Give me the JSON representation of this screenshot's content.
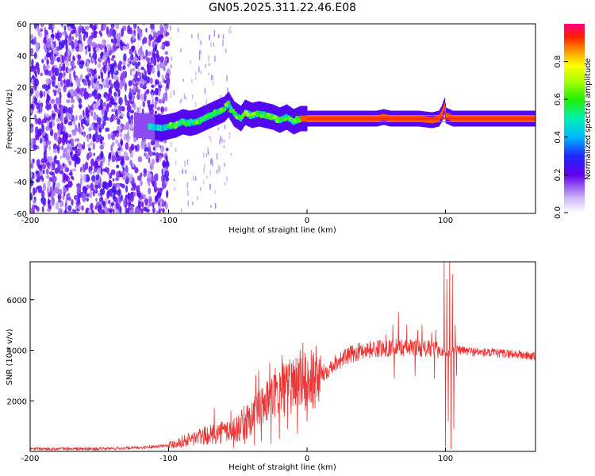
{
  "title": "GN05.2025.311.22.46.E08",
  "chart_data": [
    {
      "type": "heatmap",
      "xlabel": "Height of straight line (km)",
      "ylabel": "Frequency (Hz)",
      "xlim": [
        -200,
        165
      ],
      "ylim": [
        -60,
        60
      ],
      "xticks": [
        -200,
        -100,
        0,
        100
      ],
      "yticks": [
        -60,
        -40,
        -20,
        0,
        20,
        40,
        60
      ],
      "colorbar": {
        "label": "Normalized spectral amplitude",
        "range": [
          0,
          1
        ],
        "ticks": [
          0.0,
          0.2,
          0.4,
          0.6,
          0.8
        ]
      },
      "noise_region_x": [
        -200,
        -100
      ],
      "sparse_noise_x": [
        -100,
        -55
      ],
      "track": [
        [
          -115,
          -5
        ],
        [
          -105,
          -6
        ],
        [
          -100,
          -5
        ],
        [
          -95,
          -4
        ],
        [
          -90,
          -2
        ],
        [
          -85,
          -3
        ],
        [
          -80,
          -2
        ],
        [
          -75,
          0
        ],
        [
          -70,
          2
        ],
        [
          -65,
          4
        ],
        [
          -60,
          6
        ],
        [
          -57,
          9
        ],
        [
          -53,
          3
        ],
        [
          -48,
          0
        ],
        [
          -45,
          4
        ],
        [
          -40,
          2
        ],
        [
          -35,
          3
        ],
        [
          -30,
          2
        ],
        [
          -25,
          1
        ],
        [
          -20,
          -1
        ],
        [
          -15,
          1
        ],
        [
          -10,
          -2
        ],
        [
          -5,
          0
        ],
        [
          0,
          0
        ],
        [
          10,
          0
        ],
        [
          25,
          0
        ],
        [
          50,
          0
        ],
        [
          55,
          1
        ],
        [
          60,
          0
        ],
        [
          70,
          0
        ],
        [
          80,
          0
        ],
        [
          90,
          -1
        ],
        [
          95,
          0
        ],
        [
          97,
          3
        ],
        [
          99,
          8
        ],
        [
          100,
          2
        ],
        [
          105,
          0
        ],
        [
          130,
          0
        ],
        [
          165,
          0
        ]
      ]
    },
    {
      "type": "line",
      "xlabel": "Height of straight line (km)",
      "ylabel": "SNR (10 * v/v)",
      "xlim": [
        -200,
        165
      ],
      "ylim": [
        0,
        7500
      ],
      "xticks": [
        -200,
        -100,
        0,
        100
      ],
      "yticks": [
        2000,
        4000,
        6000
      ],
      "series_color": "#ee3333",
      "trend": [
        [
          -200,
          100
        ],
        [
          -150,
          100
        ],
        [
          -120,
          150
        ],
        [
          -100,
          250
        ],
        [
          -90,
          400
        ],
        [
          -80,
          550
        ],
        [
          -70,
          650
        ],
        [
          -60,
          800
        ],
        [
          -50,
          900
        ],
        [
          -40,
          1400
        ],
        [
          -30,
          1900
        ],
        [
          -20,
          2400
        ],
        [
          -10,
          2600
        ],
        [
          -5,
          2700
        ],
        [
          0,
          2700
        ],
        [
          10,
          3000
        ],
        [
          20,
          3500
        ],
        [
          30,
          3800
        ],
        [
          40,
          4000
        ],
        [
          60,
          4100
        ],
        [
          80,
          4100
        ],
        [
          95,
          4000
        ],
        [
          100,
          3900
        ],
        [
          103,
          3900
        ],
        [
          105,
          4100
        ],
        [
          110,
          4000
        ],
        [
          130,
          3900
        ],
        [
          150,
          3850
        ],
        [
          165,
          3750
        ]
      ],
      "spikes": [
        [
          -67,
          1700
        ],
        [
          -55,
          1600
        ],
        [
          -37,
          3000
        ],
        [
          -35,
          3200
        ],
        [
          -32,
          2500
        ],
        [
          -27,
          3500
        ],
        [
          -23,
          3300
        ],
        [
          -18,
          3800
        ],
        [
          -15,
          3100
        ],
        [
          -10,
          3600
        ],
        [
          -8,
          3700
        ],
        [
          -5,
          4000
        ],
        [
          -3,
          4300
        ],
        [
          0,
          1700
        ],
        [
          3,
          4000
        ],
        [
          57,
          4600
        ],
        [
          62,
          5000
        ],
        [
          66,
          5500
        ],
        [
          72,
          5000
        ],
        [
          75,
          4400
        ],
        [
          80,
          4800
        ],
        [
          83,
          5000
        ],
        [
          90,
          4700
        ],
        [
          93,
          4800
        ]
      ],
      "dips": [
        [
          -53,
          150
        ],
        [
          -45,
          300
        ],
        [
          -38,
          250
        ],
        [
          -33,
          400
        ],
        [
          -26,
          300
        ],
        [
          -20,
          500
        ],
        [
          -14,
          900
        ],
        [
          -7,
          700
        ],
        [
          0,
          1200
        ],
        [
          63,
          2900
        ],
        [
          78,
          3000
        ],
        [
          92,
          2900
        ]
      ],
      "burst": [
        [
          99,
          7500
        ],
        [
          100,
          200
        ],
        [
          101,
          6800
        ],
        [
          102,
          1200
        ],
        [
          103,
          7500
        ],
        [
          104,
          100
        ],
        [
          105,
          7000
        ],
        [
          106,
          900
        ],
        [
          107,
          5000
        ],
        [
          108,
          3000
        ]
      ]
    }
  ]
}
